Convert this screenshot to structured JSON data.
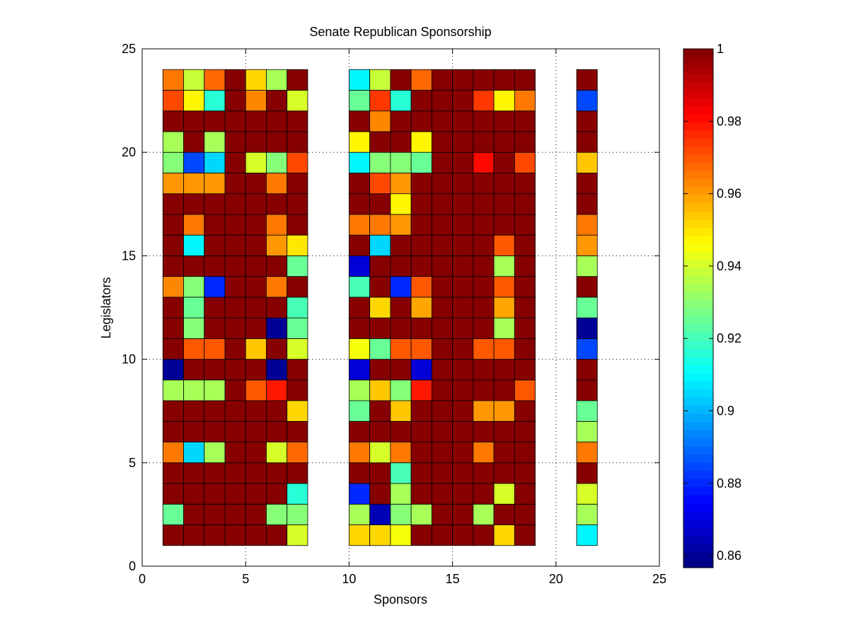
{
  "chart_data": {
    "type": "heatmap",
    "title": "Senate Republican Sponsorship",
    "xlabel": "Sponsors",
    "ylabel": "Legislators",
    "xlim": [
      0,
      25
    ],
    "ylim": [
      0,
      25
    ],
    "x_ticks": [
      0,
      5,
      10,
      15,
      20,
      25
    ],
    "y_ticks": [
      0,
      5,
      10,
      15,
      20,
      25
    ],
    "grid": true,
    "grid_style": "dotted",
    "colormap": "jet",
    "colorbar": {
      "min": 0.8567,
      "max": 1,
      "ticks": [
        0.86,
        0.88,
        0.9,
        0.92,
        0.94,
        0.96,
        0.98,
        1
      ],
      "tick_labels": [
        "0.86",
        "0.88",
        "0.9",
        "0.92",
        "0.94",
        "0.96",
        "0.98",
        "1"
      ]
    },
    "x_columns": [
      1,
      2,
      3,
      4,
      5,
      6,
      7,
      10,
      11,
      12,
      13,
      14,
      15,
      16,
      17,
      18,
      21
    ],
    "y_rows": [
      1,
      2,
      3,
      4,
      5,
      6,
      7,
      8,
      9,
      10,
      11,
      12,
      13,
      14,
      15,
      16,
      17,
      18,
      19,
      20,
      21,
      22,
      23
    ],
    "values_note_rows_bottom_to_top": true,
    "values": [
      [
        1,
        1,
        1,
        1,
        1,
        1,
        0.94,
        0.952,
        0.952,
        0.945,
        1,
        1,
        1,
        1,
        0.952,
        1,
        0.91
      ],
      [
        0.925,
        1,
        1,
        1,
        1,
        0.93,
        0.93,
        0.935,
        0.865,
        0.93,
        0.935,
        1,
        1,
        0.935,
        1,
        1,
        0.935
      ],
      [
        1,
        1,
        1,
        1,
        1,
        1,
        0.915,
        0.88,
        1,
        0.935,
        1,
        1,
        1,
        1,
        0.94,
        1,
        0.94
      ],
      [
        1,
        1,
        1,
        1,
        1,
        1,
        1,
        1,
        1,
        0.92,
        1,
        1,
        1,
        1,
        1,
        1,
        1
      ],
      [
        0.965,
        0.905,
        0.935,
        1,
        1,
        0.94,
        0.968,
        0.965,
        0.94,
        0.965,
        1,
        1,
        1,
        0.965,
        1,
        1,
        0.965
      ],
      [
        1,
        1,
        1,
        1,
        1,
        1,
        1,
        1,
        1,
        1,
        1,
        1,
        1,
        1,
        1,
        1,
        0.935
      ],
      [
        1,
        1,
        1,
        1,
        1,
        1,
        0.952,
        0.925,
        1,
        0.955,
        1,
        1,
        1,
        0.96,
        0.96,
        1,
        0.925
      ],
      [
        0.935,
        0.935,
        0.935,
        1,
        0.97,
        0.978,
        1,
        0.935,
        0.955,
        0.93,
        0.978,
        1,
        1,
        1,
        1,
        0.97,
        1
      ],
      [
        0.86,
        1,
        1,
        1,
        1,
        0.86,
        1,
        0.868,
        1,
        1,
        0.868,
        1,
        1,
        1,
        1,
        1,
        1
      ],
      [
        1,
        0.97,
        0.97,
        1,
        0.955,
        1,
        0.94,
        0.945,
        0.925,
        0.97,
        0.97,
        1,
        1,
        0.97,
        0.97,
        1,
        0.885
      ],
      [
        1,
        0.93,
        1,
        1,
        1,
        0.86,
        0.925,
        1,
        1,
        1,
        1,
        1,
        1,
        1,
        0.935,
        1,
        0.86
      ],
      [
        1,
        0.925,
        1,
        1,
        1,
        1,
        0.92,
        1,
        0.952,
        1,
        0.958,
        1,
        1,
        1,
        0.958,
        1,
        0.925
      ],
      [
        0.962,
        0.93,
        0.88,
        1,
        1,
        0.965,
        1,
        0.92,
        1,
        0.88,
        0.97,
        1,
        1,
        1,
        0.97,
        1,
        1
      ],
      [
        1,
        1,
        1,
        1,
        1,
        1,
        0.925,
        0.868,
        1,
        1,
        1,
        1,
        1,
        1,
        0.935,
        1,
        0.935
      ],
      [
        1,
        0.91,
        1,
        1,
        1,
        0.96,
        0.95,
        1,
        0.905,
        1,
        1,
        1,
        1,
        1,
        0.97,
        1,
        0.96
      ],
      [
        1,
        0.965,
        1,
        1,
        1,
        0.965,
        1,
        0.965,
        0.965,
        0.96,
        1,
        1,
        1,
        1,
        1,
        1,
        0.965
      ],
      [
        1,
        1,
        1,
        1,
        1,
        1,
        1,
        1,
        1,
        0.948,
        1,
        1,
        1,
        1,
        1,
        1,
        1
      ],
      [
        0.96,
        0.96,
        0.96,
        1,
        1,
        0.965,
        1,
        1,
        0.972,
        0.96,
        1,
        1,
        1,
        1,
        1,
        1,
        1
      ],
      [
        0.93,
        0.885,
        0.905,
        1,
        0.94,
        0.93,
        0.972,
        0.91,
        0.93,
        0.93,
        0.925,
        1,
        1,
        0.98,
        1,
        0.972,
        0.955
      ],
      [
        0.935,
        1,
        0.935,
        1,
        1,
        1,
        1,
        0.948,
        1,
        1,
        0.948,
        1,
        1,
        1,
        1,
        1,
        1
      ],
      [
        1,
        1,
        1,
        1,
        1,
        1,
        1,
        1,
        0.962,
        1,
        1,
        1,
        1,
        1,
        1,
        1,
        1
      ],
      [
        0.972,
        0.948,
        0.915,
        1,
        0.962,
        1,
        0.94,
        0.925,
        0.975,
        0.915,
        1,
        1,
        1,
        0.975,
        0.948,
        0.965,
        0.885
      ],
      [
        0.965,
        0.938,
        0.968,
        1,
        0.952,
        0.935,
        1,
        0.91,
        0.938,
        1,
        0.968,
        1,
        1,
        1,
        1,
        1,
        1
      ]
    ]
  }
}
